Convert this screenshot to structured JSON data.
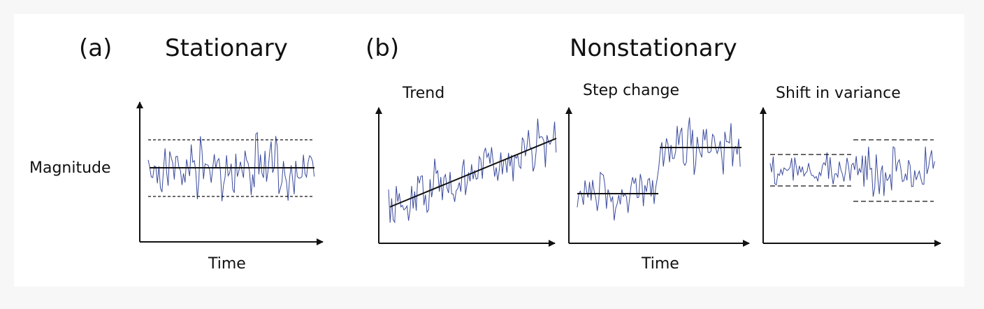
{
  "panel_a": {
    "tag": "(a)",
    "title": "Stationary",
    "y_label": "Magnitude",
    "x_label": "Time"
  },
  "panel_b": {
    "tag": "(b)",
    "title": "Nonstationary",
    "x_label": "Time",
    "subplots": [
      {
        "label": "Trend"
      },
      {
        "label": "Step change"
      },
      {
        "label": "Shift in variance"
      }
    ]
  },
  "colors": {
    "signal": "#3a4a9c",
    "lines": "#111111",
    "background": "#f7f7f7",
    "panel": "#ffffff"
  }
}
